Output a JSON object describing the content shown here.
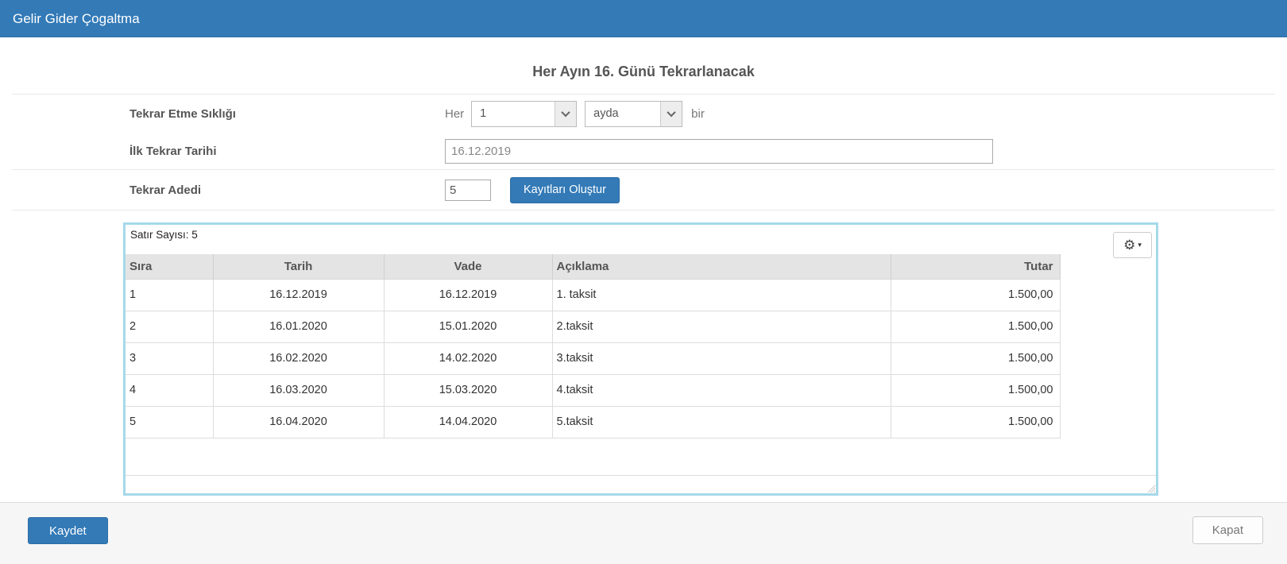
{
  "header": {
    "title": "Gelir Gider Çogaltma"
  },
  "page": {
    "subtitle": "Her Ayın 16. Günü Tekrarlanacak"
  },
  "form": {
    "frequency": {
      "label": "Tekrar Etme Sıklığı",
      "prefix": "Her",
      "interval_value": "1",
      "unit_value": "ayda",
      "suffix": "bir",
      "interval_icon": "chevron-down-icon",
      "unit_icon": "chevron-down-icon"
    },
    "first_date": {
      "label": "İlk Tekrar Tarihi",
      "value": "16.12.2019"
    },
    "repeat_count": {
      "label": "Tekrar Adedi",
      "value": "5",
      "generate_button_label": "Kayıtları Oluştur"
    }
  },
  "grid": {
    "row_count_label": "Satır Sayısı: 5",
    "settings_button": {
      "icon": "gear-icon",
      "caret_icon": "caret-down-icon"
    },
    "columns": [
      {
        "label": "Sıra",
        "align": "left"
      },
      {
        "label": "Tarih",
        "align": "center"
      },
      {
        "label": "Vade",
        "align": "center"
      },
      {
        "label": "Açıklama",
        "align": "left"
      },
      {
        "label": "Tutar",
        "align": "right"
      }
    ],
    "rows": [
      [
        "1",
        "16.12.2019",
        "16.12.2019",
        "1. taksit",
        "1.500,00"
      ],
      [
        "2",
        "16.01.2020",
        "15.01.2020",
        "2.taksit",
        "1.500,00"
      ],
      [
        "3",
        "16.02.2020",
        "14.02.2020",
        "3.taksit",
        "1.500,00"
      ],
      [
        "4",
        "16.03.2020",
        "15.03.2020",
        "4.taksit",
        "1.500,00"
      ],
      [
        "5",
        "16.04.2020",
        "14.04.2020",
        "5.taksit",
        "1.500,00"
      ]
    ]
  },
  "footer": {
    "save_label": "Kaydet",
    "close_label": "Kapat"
  },
  "colors": {
    "primary": "#337ab7",
    "grid_focus_border": "#a5d9ea",
    "table_header_bg": "#e4e4e4",
    "footer_bg": "#f6f6f6"
  }
}
